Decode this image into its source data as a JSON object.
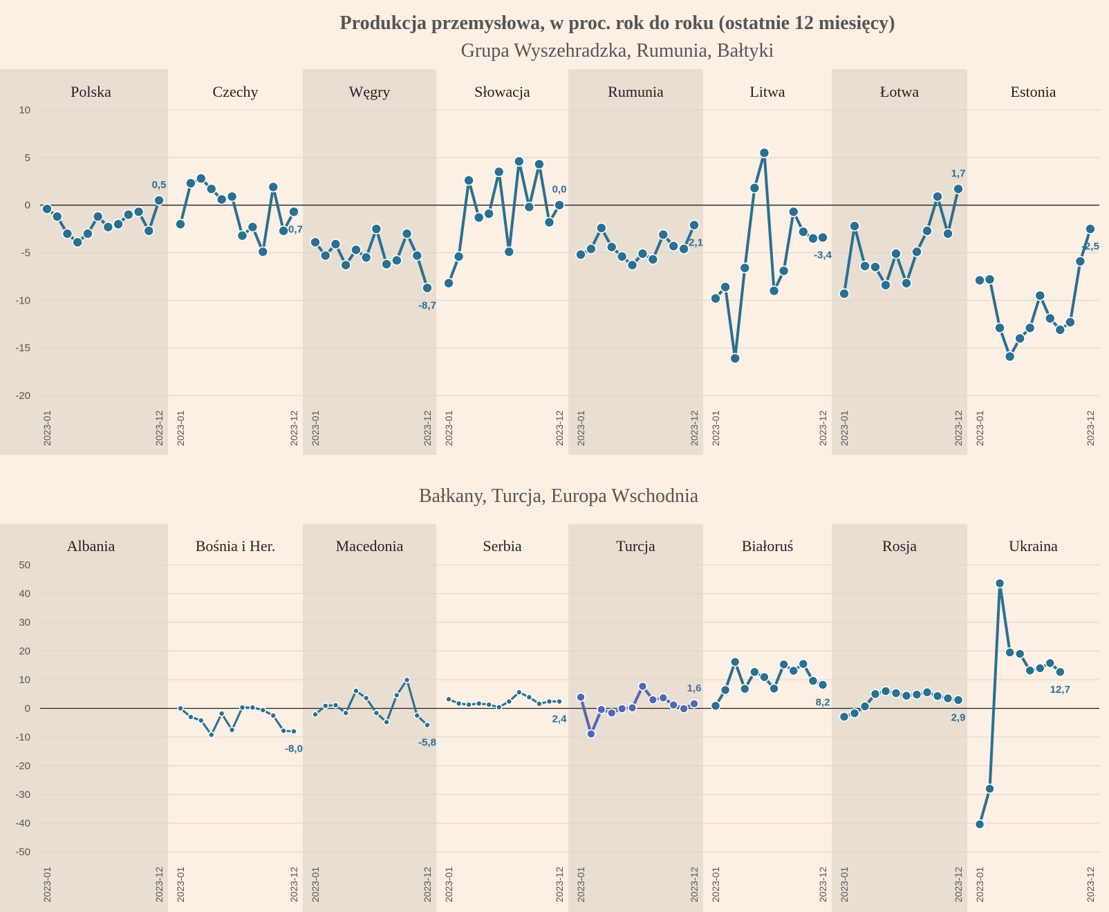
{
  "title": "Produkcja przemysłowa, w proc. rok do roku (ostatnie 12 miesięcy)",
  "colors": {
    "background": "#fcefe3",
    "panel_shade": "#e8ded2",
    "line": "#2a7091",
    "line_highlight": "#5068b4",
    "grid": "#dcd5cc",
    "zero_line": "#222222"
  },
  "chart_data": [
    {
      "type": "line",
      "title": "Grupa Wyszehradzka, Rumunia, Bałtyki",
      "ylim": [
        -20,
        10
      ],
      "yticks": [
        "10",
        "5",
        "0",
        "-5",
        "-10",
        "-15",
        "-20"
      ],
      "x": [
        "2023-01",
        "2023-02",
        "2023-03",
        "2023-04",
        "2023-05",
        "2023-06",
        "2023-07",
        "2023-08",
        "2023-09",
        "2023-10",
        "2023-11",
        "2023-12"
      ],
      "xtick_labels": [
        "2023-01",
        "2023-12"
      ],
      "grid": true,
      "panels": [
        {
          "name": "Polska",
          "values": [
            -0.4,
            -1.2,
            -3.0,
            -3.9,
            -3.0,
            -1.2,
            -2.3,
            -2.0,
            -1.0,
            -0.7,
            -2.7,
            0.5
          ],
          "last_label": "0,5"
        },
        {
          "name": "Czechy",
          "values": [
            -2.0,
            2.3,
            2.8,
            1.7,
            0.6,
            0.9,
            -3.2,
            -2.3,
            -4.9,
            1.9,
            -2.7,
            -0.7
          ],
          "last_label": "-0,7"
        },
        {
          "name": "Węgry",
          "values": [
            -3.9,
            -5.3,
            -4.1,
            -6.3,
            -4.7,
            -5.5,
            -2.5,
            -6.2,
            -5.8,
            -3.0,
            -5.3,
            -8.7
          ],
          "last_label": "-8,7"
        },
        {
          "name": "Słowacja",
          "values": [
            -8.2,
            -5.4,
            2.6,
            -1.3,
            -0.9,
            3.5,
            -4.9,
            4.6,
            -0.2,
            4.3,
            -1.8,
            0.0
          ],
          "last_label": "0,0"
        },
        {
          "name": "Rumunia",
          "values": [
            -5.2,
            -4.6,
            -2.4,
            -4.4,
            -5.4,
            -6.3,
            -5.1,
            -5.7,
            -3.1,
            -4.3,
            -4.6,
            -2.1
          ],
          "last_label": "-2,1"
        },
        {
          "name": "Litwa",
          "values": [
            -9.8,
            -8.6,
            -16.1,
            -6.6,
            1.8,
            5.5,
            -9.0,
            -6.9,
            -0.7,
            -2.8,
            -3.5,
            -3.4
          ],
          "last_label": "-3,4"
        },
        {
          "name": "Łotwa",
          "values": [
            -9.3,
            -2.2,
            -6.4,
            -6.5,
            -8.4,
            -5.1,
            -8.2,
            -4.9,
            -2.7,
            0.9,
            -3.0,
            1.7
          ],
          "last_label": "1,7"
        },
        {
          "name": "Estonia",
          "values": [
            -7.9,
            -7.8,
            -12.9,
            -15.9,
            -14.0,
            -12.9,
            -9.5,
            -11.9,
            -13.1,
            -12.3,
            -5.9,
            -2.5
          ],
          "last_label": "-2,5"
        }
      ]
    },
    {
      "type": "line",
      "title": "Bałkany, Turcja, Europa Wschodnia",
      "ylim": [
        -50,
        50
      ],
      "yticks": [
        "50",
        "40",
        "30",
        "20",
        "10",
        "0",
        "-10",
        "-20",
        "-30",
        "-40",
        "-50"
      ],
      "x": [
        "2023-01",
        "2023-02",
        "2023-03",
        "2023-04",
        "2023-05",
        "2023-06",
        "2023-07",
        "2023-08",
        "2023-09",
        "2023-10",
        "2023-11",
        "2023-12"
      ],
      "xtick_labels": [
        "2023-01",
        "2023-12"
      ],
      "grid": true,
      "panels": [
        {
          "name": "Albania",
          "values": [],
          "last_label": ""
        },
        {
          "name": "Bośnia i Her.",
          "values": [
            0.0,
            -3.0,
            -4.2,
            -9.2,
            -1.8,
            -7.5,
            0.3,
            0.3,
            -0.6,
            -2.5,
            -7.8,
            -8.0
          ],
          "last_label": "-8,0",
          "style": "small"
        },
        {
          "name": "Macedonia",
          "values": [
            -2.1,
            0.9,
            1.1,
            -1.6,
            6.1,
            3.6,
            -1.6,
            -4.8,
            4.6,
            9.9,
            -2.5,
            -5.8
          ],
          "last_label": "-5,8",
          "style": "small"
        },
        {
          "name": "Serbia",
          "values": [
            3.2,
            1.7,
            1.3,
            1.7,
            1.3,
            0.4,
            2.4,
            5.6,
            3.9,
            1.6,
            2.4,
            2.4
          ],
          "last_label": "2,4",
          "style": "small"
        },
        {
          "name": "Turcja",
          "values": [
            3.9,
            -8.9,
            -0.4,
            -1.6,
            -0.1,
            0.2,
            7.7,
            3.0,
            3.7,
            1.2,
            -0.1,
            1.6
          ],
          "last_label": "1,6",
          "style": "highlight"
        },
        {
          "name": "Białoruś",
          "values": [
            0.9,
            6.4,
            16.2,
            6.8,
            12.7,
            10.9,
            6.9,
            15.3,
            13.1,
            15.5,
            9.6,
            8.2
          ],
          "last_label": "8,2"
        },
        {
          "name": "Rosja",
          "values": [
            -2.9,
            -1.7,
            0.7,
            5.0,
            6.0,
            5.3,
            4.4,
            4.8,
            5.6,
            4.3,
            3.5,
            2.9
          ],
          "last_label": "2,9"
        },
        {
          "name": "Ukraina",
          "values": [
            -40.4,
            -28.0,
            43.6,
            19.5,
            19.0,
            13.2,
            14.0,
            15.8,
            12.7,
            null,
            null,
            null
          ],
          "last_label": "12,7"
        }
      ]
    }
  ]
}
